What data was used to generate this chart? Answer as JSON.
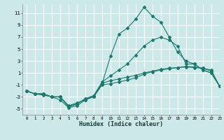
{
  "x": [
    0,
    1,
    2,
    3,
    4,
    5,
    6,
    7,
    8,
    9,
    10,
    11,
    12,
    13,
    14,
    15,
    16,
    17,
    18,
    19,
    20,
    21,
    22,
    23
  ],
  "line1": [
    -2.0,
    -2.5,
    -2.5,
    -3.0,
    -3.0,
    -4.5,
    -4.0,
    -3.5,
    -3.0,
    -1.0,
    -0.8,
    -0.5,
    -0.2,
    0.2,
    0.8,
    1.2,
    1.5,
    1.7,
    1.9,
    2.1,
    2.0,
    1.8,
    1.5,
    -1.2
  ],
  "line2": [
    -2.0,
    -2.5,
    -2.5,
    -3.0,
    -3.5,
    -4.8,
    -4.5,
    -3.5,
    -2.8,
    -0.8,
    3.8,
    7.5,
    8.5,
    10.0,
    12.0,
    10.5,
    9.5,
    7.0,
    4.5,
    3.0,
    2.5,
    1.5,
    1.0,
    -1.2
  ],
  "line3": [
    -2.0,
    -2.5,
    -2.5,
    -3.0,
    -3.0,
    -4.5,
    -4.2,
    -3.3,
    -2.8,
    -0.5,
    0.5,
    1.5,
    2.5,
    4.0,
    5.5,
    6.5,
    7.0,
    6.5,
    5.5,
    2.5,
    2.5,
    1.5,
    1.0,
    -1.2
  ],
  "line4": [
    -2.0,
    -2.5,
    -2.7,
    -3.0,
    -3.0,
    -4.7,
    -4.2,
    -3.3,
    -3.0,
    -0.7,
    -0.3,
    0.0,
    0.3,
    0.6,
    1.0,
    1.3,
    1.6,
    1.8,
    1.9,
    2.0,
    1.9,
    1.8,
    1.3,
    -1.2
  ],
  "color": "#1a7a6e",
  "bg_color": "#cde8e8",
  "grid_color": "#ffffff",
  "xlabel": "Humidex (Indice chaleur)",
  "xlim": [
    -0.5,
    23
  ],
  "ylim": [
    -6,
    12.5
  ],
  "yticks": [
    -5,
    -3,
    -1,
    1,
    3,
    5,
    7,
    9,
    11
  ],
  "xticks": [
    0,
    1,
    2,
    3,
    4,
    5,
    6,
    7,
    8,
    9,
    10,
    11,
    12,
    13,
    14,
    15,
    16,
    17,
    18,
    19,
    20,
    21,
    22,
    23
  ]
}
